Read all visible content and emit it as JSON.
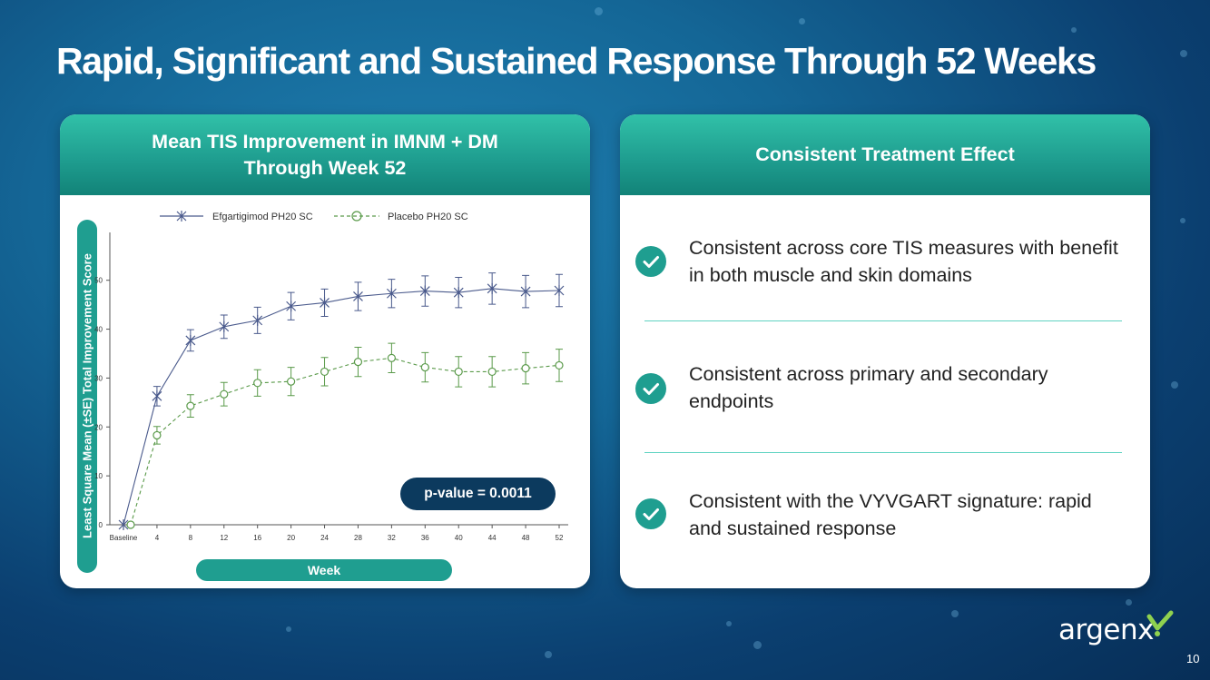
{
  "slide": {
    "title": "Rapid, Significant and Sustained Response Through 52 Weeks",
    "page_number": "10",
    "logo_text": "argenx"
  },
  "left_card": {
    "header_line1": "Mean TIS Improvement in IMNM + DM",
    "header_line2": "Through Week 52",
    "p_value": "p-value = 0.0011"
  },
  "right_card": {
    "header": "Consistent Treatment Effect",
    "items": [
      {
        "text": "Consistent across core TIS measures with benefit in both muscle and skin domains",
        "icon": "check-icon"
      },
      {
        "text": "Consistent across primary and secondary endpoints",
        "icon": "check-icon"
      },
      {
        "text": "Consistent with the VYVGART signature: rapid and sustained response",
        "icon": "check-icon"
      }
    ]
  },
  "colors": {
    "teal": "#1f9e90",
    "navy_pill": "#0c3a5e",
    "efgartigimod": "#4a5a8c",
    "placebo": "#5a9a4a"
  },
  "chart_data": {
    "type": "line",
    "xlabel": "Week",
    "ylabel": "Least Square Mean (±SE) Total Improvement Score",
    "categories": [
      "Baseline",
      "4",
      "8",
      "12",
      "16",
      "20",
      "24",
      "28",
      "32",
      "36",
      "40",
      "44",
      "48",
      "52"
    ],
    "yticks": [
      0,
      10,
      20,
      30,
      40,
      50
    ],
    "ylim": [
      0,
      57
    ],
    "legend_position": "top",
    "series": [
      {
        "name": "Efgartigimod PH20 SC",
        "marker": "asterisk",
        "line": "solid",
        "values": [
          0,
          26.3,
          37.7,
          40.5,
          41.8,
          44.7,
          45.4,
          46.7,
          47.3,
          47.8,
          47.5,
          48.3,
          47.7,
          47.9
        ],
        "se": [
          0,
          2.0,
          2.2,
          2.4,
          2.7,
          2.8,
          2.8,
          2.9,
          2.9,
          3.1,
          3.1,
          3.2,
          3.3,
          3.3
        ]
      },
      {
        "name": "Placebo PH20 SC",
        "marker": "circle",
        "line": "dashed",
        "values": [
          0,
          18.3,
          24.3,
          26.7,
          29.0,
          29.3,
          31.3,
          33.3,
          34.1,
          32.2,
          31.3,
          31.3,
          32.0,
          32.6
        ],
        "se": [
          0,
          1.8,
          2.3,
          2.4,
          2.7,
          2.9,
          2.9,
          3.0,
          3.0,
          3.0,
          3.1,
          3.1,
          3.2,
          3.3
        ]
      }
    ]
  }
}
